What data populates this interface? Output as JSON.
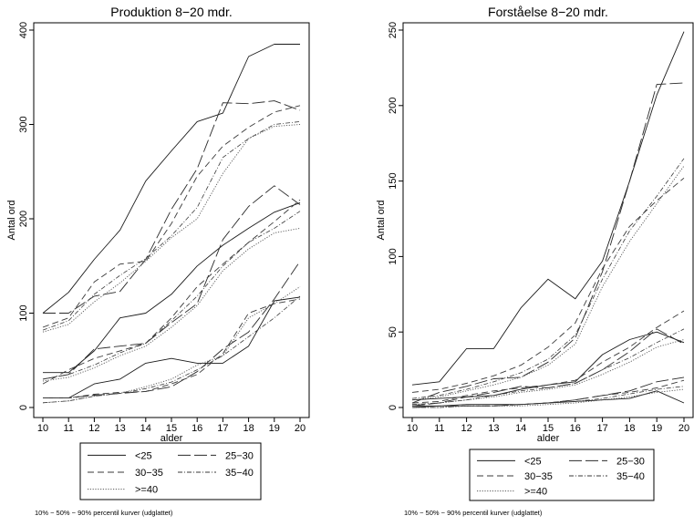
{
  "chart_data": [
    {
      "type": "line",
      "title": "Produktion 8−20 mdr.",
      "xlabel": "alder",
      "ylabel": "Antal ord",
      "xlim": [
        10,
        20
      ],
      "ylim": [
        0,
        400
      ],
      "x": [
        10,
        11,
        12,
        13,
        14,
        15,
        16,
        17,
        18,
        19,
        20
      ],
      "x_ticks": [
        "10",
        "11",
        "12",
        "13",
        "14",
        "15",
        "16",
        "17",
        "18",
        "19",
        "20"
      ],
      "y_ticks": [
        "0",
        "100",
        "200",
        "300",
        "400"
      ],
      "grid": false,
      "legend": [
        "<25",
        "25−30",
        "30−35",
        "35−40",
        ">=40"
      ],
      "legend_position": "bottom",
      "footnote": "10% − 50% − 90% percentil kurver (udglattet)",
      "series": [
        {
          "name": "<25",
          "percentile": 90,
          "values": [
            100,
            122,
            157,
            188,
            240,
            272,
            303,
            312,
            372,
            385,
            385
          ]
        },
        {
          "name": "<25",
          "percentile": 50,
          "values": [
            37,
            37,
            60,
            95,
            100,
            120,
            150,
            172,
            190,
            207,
            217
          ]
        },
        {
          "name": "<25",
          "percentile": 10,
          "values": [
            10,
            10,
            25,
            30,
            47,
            52,
            47,
            47,
            65,
            113,
            117
          ]
        },
        {
          "name": "25−30",
          "percentile": 90,
          "values": [
            100,
            100,
            118,
            123,
            157,
            210,
            253,
            323,
            322,
            325,
            315
          ]
        },
        {
          "name": "25−30",
          "percentile": 50,
          "values": [
            30,
            35,
            62,
            65,
            68,
            90,
            110,
            178,
            213,
            235,
            215
          ]
        },
        {
          "name": "25−30",
          "percentile": 10,
          "values": [
            10,
            10,
            13,
            15,
            17,
            22,
            38,
            62,
            80,
            115,
            155
          ]
        },
        {
          "name": "30−35",
          "percentile": 90,
          "values": [
            85,
            95,
            133,
            152,
            155,
            195,
            245,
            277,
            297,
            313,
            320
          ]
        },
        {
          "name": "30−35",
          "percentile": 50,
          "values": [
            25,
            40,
            52,
            60,
            68,
            95,
            128,
            152,
            175,
            197,
            220
          ]
        },
        {
          "name": "30−35",
          "percentile": 10,
          "values": [
            10,
            10,
            14,
            16,
            17,
            25,
            35,
            57,
            100,
            110,
            115
          ]
        },
        {
          "name": "35−40",
          "percentile": 90,
          "values": [
            82,
            92,
            120,
            140,
            158,
            182,
            212,
            265,
            285,
            300,
            303
          ]
        },
        {
          "name": "35−40",
          "percentile": 50,
          "values": [
            30,
            35,
            45,
            58,
            68,
            92,
            118,
            150,
            175,
            190,
            208
          ]
        },
        {
          "name": "35−40",
          "percentile": 10,
          "values": [
            5,
            7,
            12,
            15,
            20,
            27,
            40,
            55,
            75,
            95,
            118
          ]
        },
        {
          "name": ">=40",
          "percentile": 90,
          "values": [
            80,
            88,
            112,
            132,
            155,
            180,
            200,
            248,
            285,
            298,
            300
          ]
        },
        {
          "name": ">=40",
          "percentile": 50,
          "values": [
            28,
            32,
            42,
            55,
            65,
            85,
            108,
            145,
            168,
            185,
            190
          ]
        },
        {
          "name": ">=40",
          "percentile": 10,
          "values": [
            5,
            7,
            12,
            15,
            22,
            30,
            45,
            55,
            95,
            110,
            128
          ]
        }
      ]
    },
    {
      "type": "line",
      "title": "Forståelse 8−20 mdr.",
      "xlabel": "alder",
      "ylabel": "Antal ord",
      "xlim": [
        10,
        20
      ],
      "ylim": [
        0,
        250
      ],
      "x": [
        10,
        11,
        12,
        13,
        14,
        15,
        16,
        17,
        18,
        19,
        20
      ],
      "x_ticks": [
        "10",
        "11",
        "12",
        "13",
        "14",
        "15",
        "16",
        "17",
        "18",
        "19",
        "20"
      ],
      "y_ticks": [
        "0",
        "50",
        "100",
        "150",
        "200",
        "250"
      ],
      "grid": false,
      "legend": [
        "<25",
        "25−30",
        "30−35",
        "35−40",
        ">=40"
      ],
      "legend_position": "bottom",
      "footnote": "10% − 50% − 90% percentil kurver (udglattet)",
      "series": [
        {
          "name": "<25",
          "percentile": 90,
          "values": [
            15,
            17,
            39,
            39,
            66,
            85,
            72,
            97,
            150,
            207,
            249
          ]
        },
        {
          "name": "<25",
          "percentile": 50,
          "values": [
            5,
            6,
            7,
            8,
            12,
            15,
            17,
            35,
            45,
            50,
            43
          ]
        },
        {
          "name": "<25",
          "percentile": 10,
          "values": [
            1,
            1,
            2,
            2,
            2,
            3,
            4,
            5,
            6,
            11,
            3
          ]
        },
        {
          "name": "25−30",
          "percentile": 90,
          "values": [
            3,
            10,
            14,
            19,
            20,
            30,
            46,
            90,
            150,
            214,
            215
          ]
        },
        {
          "name": "25−30",
          "percentile": 50,
          "values": [
            1,
            3,
            7,
            10,
            14,
            13,
            16,
            25,
            37,
            52,
            42
          ]
        },
        {
          "name": "25−30",
          "percentile": 10,
          "values": [
            0,
            1,
            1,
            1,
            2,
            3,
            5,
            8,
            11,
            17,
            20
          ]
        },
        {
          "name": "30−35",
          "percentile": 90,
          "values": [
            10,
            12,
            16,
            21,
            28,
            40,
            56,
            92,
            120,
            137,
            152
          ]
        },
        {
          "name": "30−35",
          "percentile": 50,
          "values": [
            3,
            4,
            8,
            11,
            13,
            15,
            18,
            30,
            40,
            53,
            64
          ]
        },
        {
          "name": "30−35",
          "percentile": 10,
          "values": [
            0,
            1,
            1,
            1,
            2,
            3,
            5,
            8,
            10,
            13,
            18
          ]
        },
        {
          "name": "35−40",
          "percentile": 90,
          "values": [
            6,
            8,
            12,
            17,
            23,
            32,
            48,
            85,
            117,
            140,
            165
          ]
        },
        {
          "name": "35−40",
          "percentile": 50,
          "values": [
            2,
            3,
            5,
            8,
            11,
            13,
            16,
            25,
            33,
            43,
            52
          ]
        },
        {
          "name": "35−40",
          "percentile": 10,
          "values": [
            0,
            0,
            1,
            1,
            2,
            3,
            4,
            6,
            9,
            12,
            14
          ]
        },
        {
          "name": ">=40",
          "percentile": 90,
          "values": [
            5,
            7,
            11,
            15,
            20,
            28,
            42,
            80,
            110,
            135,
            160
          ]
        },
        {
          "name": ">=40",
          "percentile": 50,
          "values": [
            2,
            3,
            5,
            7,
            10,
            12,
            15,
            22,
            30,
            40,
            45
          ]
        },
        {
          "name": ">=40",
          "percentile": 10,
          "values": [
            0,
            0,
            1,
            1,
            1,
            2,
            3,
            5,
            7,
            10,
            12
          ]
        }
      ]
    }
  ],
  "line_styles": {
    "<25": {
      "dash": "",
      "width": 0.9,
      "color": "#1a1a1a"
    },
    "25−30": {
      "dash": "14 4",
      "width": 0.9,
      "color": "#2a2a2a"
    },
    "30−35": {
      "dash": "7 4",
      "width": 0.9,
      "color": "#3a3a3a"
    },
    "35−40": {
      "dash": "5 2 1 2",
      "width": 0.8,
      "color": "#3a3a3a"
    },
    ">=40": {
      "dash": "1.2 1.6",
      "width": 0.9,
      "color": "#555555"
    }
  }
}
